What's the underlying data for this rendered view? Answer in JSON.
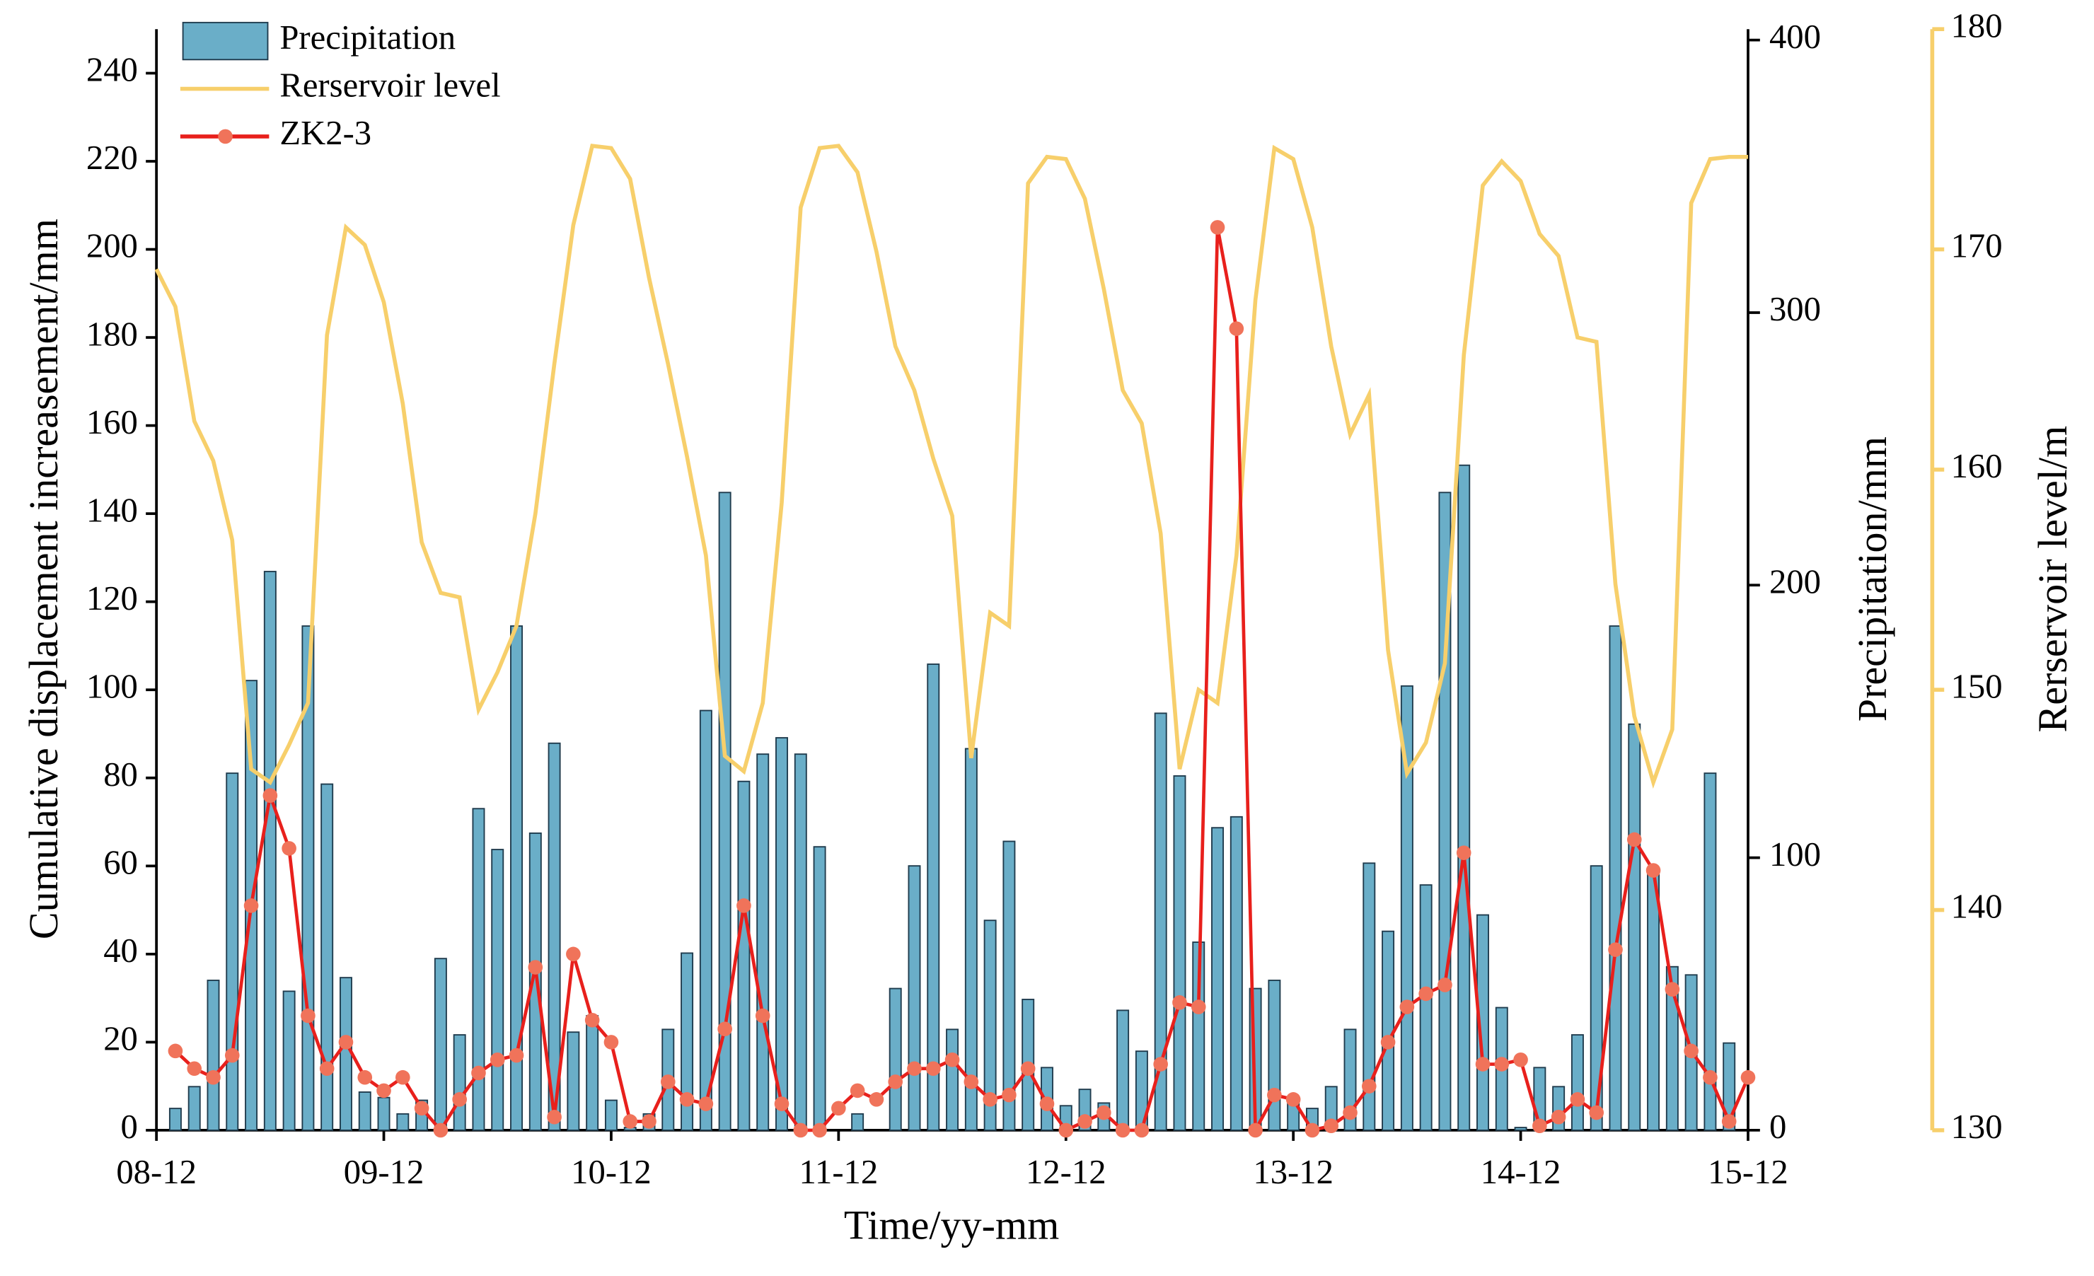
{
  "chart_data": {
    "type": "combo",
    "xlabel": "Time/yy-mm",
    "ylabel": "Cumulative displacement increasement/mm",
    "y2label": "Precipitation/mm",
    "y3label": "Rerservoir level/m",
    "xlim": [
      0,
      84
    ],
    "xticks": [
      {
        "value": 0,
        "label": "08-12"
      },
      {
        "value": 12,
        "label": "09-12"
      },
      {
        "value": 24,
        "label": "10-12"
      },
      {
        "value": 36,
        "label": "11-12"
      },
      {
        "value": 48,
        "label": "12-12"
      },
      {
        "value": 60,
        "label": "13-12"
      },
      {
        "value": 72,
        "label": "14-12"
      },
      {
        "value": 84,
        "label": "15-12"
      }
    ],
    "ylim": [
      0,
      250
    ],
    "yticks": [
      0,
      20,
      40,
      60,
      80,
      100,
      120,
      140,
      160,
      180,
      200,
      220,
      240
    ],
    "y2lim": [
      0,
      404
    ],
    "y2ticks": [
      0,
      100,
      200,
      300,
      400
    ],
    "y3lim": [
      130,
      180
    ],
    "y3ticks": [
      130,
      140,
      150,
      160,
      170,
      180
    ],
    "y3_label_color": "#0000ee",
    "y3_axis_color": "#f7cf6b",
    "legend": "top-left",
    "x": [
      1,
      2,
      3,
      4,
      5,
      6,
      7,
      8,
      9,
      10,
      11,
      12,
      13,
      14,
      15,
      16,
      17,
      18,
      19,
      20,
      21,
      22,
      23,
      24,
      25,
      26,
      27,
      28,
      29,
      30,
      31,
      32,
      33,
      34,
      35,
      36,
      37,
      38,
      39,
      40,
      41,
      42,
      43,
      44,
      45,
      46,
      47,
      48,
      49,
      50,
      51,
      52,
      53,
      54,
      55,
      56,
      57,
      58,
      59,
      60,
      61,
      62,
      63,
      64,
      65,
      66,
      67,
      68,
      69,
      70,
      71,
      72,
      73,
      74,
      75,
      76,
      77,
      78,
      79,
      80,
      81,
      82,
      83,
      84
    ],
    "series": [
      {
        "name": "Precipitation",
        "type": "bar",
        "axis": "y2",
        "color": "#6aaec8",
        "edge": "#1f3b4d",
        "values": [
          8,
          16,
          55,
          131,
          165,
          205,
          51,
          185,
          127,
          56,
          14,
          12,
          6,
          11,
          63,
          35,
          118,
          103,
          185,
          109,
          142,
          36,
          42,
          11,
          1,
          6,
          37,
          65,
          154,
          234,
          128,
          138,
          144,
          138,
          104,
          0,
          6,
          0,
          52,
          97,
          171,
          37,
          140,
          77,
          106,
          48,
          23,
          9,
          15,
          10,
          44,
          29,
          153,
          130,
          69,
          111,
          115,
          52,
          55,
          10,
          8,
          16,
          37,
          98,
          73,
          163,
          90,
          234,
          244,
          79,
          45,
          1,
          23,
          16,
          35,
          97,
          185,
          149,
          94,
          60,
          57,
          131,
          32,
          0
        ]
      },
      {
        "name": "Rerservoir level",
        "type": "line",
        "axis": "y3",
        "color": "#f7cf6b",
        "x": [
          0,
          1,
          2,
          3,
          4,
          5,
          6,
          7,
          8,
          9,
          10,
          11,
          12,
          13,
          14,
          15,
          16,
          17,
          18,
          19,
          20,
          21,
          22,
          23,
          24,
          25,
          26,
          27,
          28,
          29,
          30,
          31,
          32,
          33,
          34,
          35,
          36,
          37,
          38,
          39,
          40,
          41,
          42,
          43,
          44,
          45,
          46,
          47,
          48,
          49,
          50,
          51,
          52,
          53,
          54,
          55,
          56,
          57,
          58,
          59,
          60,
          61,
          62,
          63,
          64,
          65,
          66,
          67,
          68,
          69,
          70,
          71,
          72,
          73,
          74,
          75,
          76,
          77,
          78,
          79,
          80,
          81,
          82,
          83,
          84
        ],
        "values": [
          169.1,
          167.4,
          162.2,
          160.4,
          156.8,
          146.4,
          145.8,
          147.5,
          149.4,
          166.1,
          171.0,
          170.2,
          167.6,
          163.0,
          156.7,
          154.4,
          154.2,
          149.1,
          150.8,
          152.9,
          158.0,
          164.8,
          171.1,
          174.7,
          174.6,
          173.2,
          168.7,
          164.8,
          160.6,
          156.1,
          147.0,
          146.3,
          149.4,
          158.5,
          171.9,
          174.6,
          174.7,
          173.5,
          169.9,
          165.6,
          163.6,
          160.5,
          157.9,
          146.9,
          153.5,
          152.9,
          173.0,
          174.2,
          174.1,
          172.3,
          168.2,
          163.6,
          162.1,
          157.1,
          146.4,
          150.0,
          149.4,
          156.1,
          167.7,
          174.6,
          174.1,
          171.0,
          165.6,
          161.6,
          163.4,
          151.8,
          146.2,
          147.6,
          151.2,
          165.2,
          172.9,
          174.0,
          173.1,
          170.7,
          169.7,
          166.0,
          165.8,
          154.8,
          148.8,
          145.8,
          148.2,
          172.1,
          174.1,
          174.2,
          174.2
        ]
      },
      {
        "name": "ZK2-3",
        "type": "line",
        "axis": "y",
        "color": "#e8201c",
        "marker_color": "#f0735a",
        "values": [
          18,
          14,
          12,
          17,
          51,
          76,
          64,
          26,
          14,
          20,
          12,
          9,
          12,
          5,
          0,
          7,
          13,
          16,
          17,
          37,
          3,
          40,
          25,
          20,
          2,
          2,
          11,
          7,
          6,
          23,
          51,
          26,
          6,
          0,
          0,
          5,
          9,
          7,
          11,
          14,
          14,
          16,
          11,
          7,
          8,
          14,
          6,
          0,
          2,
          4,
          0,
          0,
          15,
          29,
          28,
          205,
          182,
          0,
          8,
          7,
          0,
          1,
          4,
          10,
          20,
          28,
          31,
          33,
          63,
          15,
          15,
          16,
          1,
          3,
          7,
          4,
          41,
          66,
          59,
          32,
          18,
          12,
          2,
          12
        ]
      }
    ]
  }
}
